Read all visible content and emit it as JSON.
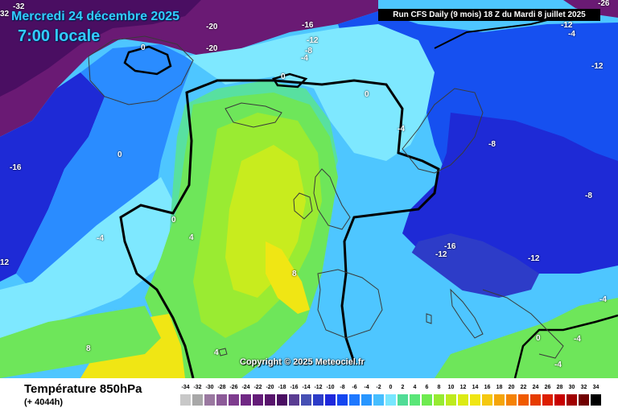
{
  "header": {
    "date_line": "Mercredi 24 décembre 2025",
    "time_line": "7:00 locale",
    "run_info": "Run CFS Daily (9 mois) 18 Z du Mardi 8 juillet 2025"
  },
  "copyright": "Copyright © 2025 Meteociel.fr",
  "footer": {
    "title": "Température 850hPa",
    "subtitle": "(+ 4044h)"
  },
  "scale": {
    "values": [
      "-34",
      "-32",
      "-30",
      "-28",
      "-26",
      "-24",
      "-22",
      "-20",
      "-18",
      "-16",
      "-14",
      "-12",
      "-10",
      "-8",
      "-6",
      "-4",
      "-2",
      "0",
      "2",
      "4",
      "6",
      "8",
      "10",
      "12",
      "14",
      "16",
      "18",
      "20",
      "22",
      "24",
      "26",
      "28",
      "30",
      "32",
      "34"
    ],
    "colors": [
      "#c8c8c8",
      "#a8a8a8",
      "#9a78a0",
      "#8c5a98",
      "#7e3c8e",
      "#702884",
      "#641c78",
      "#58146c",
      "#4a0e62",
      "#5a3c92",
      "#4650b4",
      "#2d3cc8",
      "#1e28dc",
      "#1446f0",
      "#1e78ff",
      "#2896ff",
      "#46beff",
      "#78e6ff",
      "#50dc96",
      "#5ae678",
      "#6eeb50",
      "#96eb32",
      "#beeb1e",
      "#dceb14",
      "#f0e614",
      "#f5c80f",
      "#f5a50a",
      "#f58205",
      "#f05a00",
      "#e63c00",
      "#dc1e00",
      "#c80000",
      "#a00000",
      "#700000",
      "#000000"
    ]
  },
  "map": {
    "colors": {
      "violet": "#6a1a74",
      "deep_blue": "#1e2ad6",
      "blue": "#1650f0",
      "mid_blue": "#2a8cff",
      "light_blue": "#4ec6ff",
      "cyan": "#7ee8ff",
      "aqua": "#58e0a0",
      "green": "#6ee65a",
      "lime": "#9aeb32",
      "yellow_green": "#c8ec1e",
      "yellow": "#f0e614",
      "contour": "#000000",
      "coast": "#3a3a3a"
    },
    "labels": [
      {
        "text": "-20",
        "style": "w"
      },
      {
        "text": "-20",
        "style": "w"
      },
      {
        "text": "-16",
        "style": "w"
      },
      {
        "text": "-12",
        "style": "w"
      },
      {
        "text": "-8",
        "style": "w"
      },
      {
        "text": "-4",
        "style": "w"
      },
      {
        "text": "-12",
        "style": "w"
      },
      {
        "text": "-12",
        "style": "w"
      },
      {
        "text": "-26",
        "style": "w"
      },
      {
        "text": "0",
        "style": "w"
      },
      {
        "text": "0",
        "style": "w"
      },
      {
        "text": "0",
        "style": "w"
      },
      {
        "text": "0",
        "style": "w"
      },
      {
        "text": "0",
        "style": "w"
      },
      {
        "text": "-16",
        "style": "w"
      },
      {
        "text": "-4",
        "style": "w"
      },
      {
        "text": "-8",
        "style": "w"
      },
      {
        "text": "-8",
        "style": "w"
      },
      {
        "text": "-4",
        "style": "w"
      },
      {
        "text": "4",
        "style": "w"
      },
      {
        "text": "-16",
        "style": "w"
      },
      {
        "text": "-12",
        "style": "w"
      },
      {
        "text": "-12",
        "style": "w"
      },
      {
        "text": "12",
        "style": "w"
      },
      {
        "text": "8",
        "style": "w"
      },
      {
        "text": "8",
        "style": "w"
      },
      {
        "text": "4",
        "style": "w"
      },
      {
        "text": "-4",
        "style": "w"
      },
      {
        "text": "-4",
        "style": "w"
      },
      {
        "text": "-4",
        "style": "w"
      },
      {
        "text": "-4",
        "style": "w"
      },
      {
        "text": "0",
        "style": "w"
      },
      {
        "text": "32",
        "style": "w"
      },
      {
        "text": "-32",
        "style": "w"
      }
    ]
  }
}
